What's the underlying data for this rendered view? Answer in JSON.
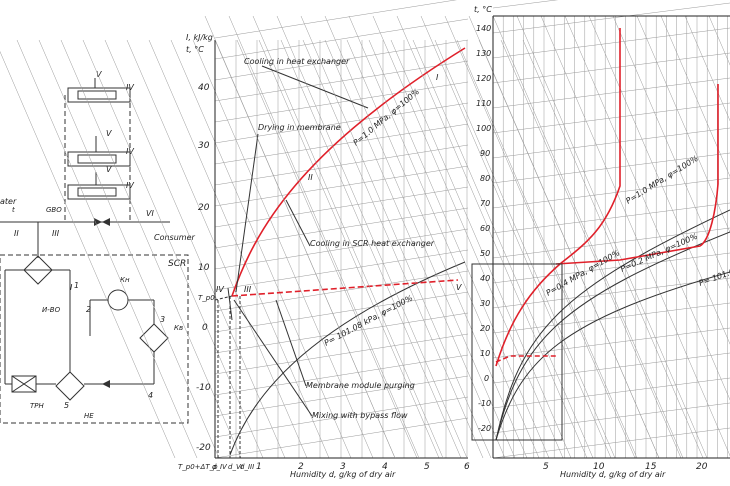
{
  "scheme": {
    "labels": {
      "water": "ater",
      "t_top": "t",
      "t_top_sub": "BO",
      "g_sub": "GBO",
      "ii": "II",
      "iii": "III",
      "v_top": "V",
      "iv_1": "IV",
      "iv_2": "IV",
      "iv_3": "IV",
      "v_1": "V",
      "v_2": "V",
      "vi": "VI",
      "consumer": "Consumer",
      "scr": "SCR",
      "i": "I",
      "ibo": "И-BO",
      "k_top": "Кн",
      "k_right": "Кв",
      "n1": "1",
      "n2": "2",
      "n3": "3",
      "n4": "4",
      "n5": "5",
      "tpn": "ТРН",
      "he": "HE"
    }
  },
  "chart1": {
    "ylabel_1": "I, kJ/kg",
    "ylabel_2": "t, °C",
    "xlabel": "Humidity d, g/kg of dry air",
    "y_ticks": [
      "40",
      "30",
      "20",
      "10",
      "0",
      "-10",
      "-20"
    ],
    "x_ticks": [
      "1",
      "2",
      "3",
      "4",
      "5",
      "6"
    ],
    "x_special": [
      "T_p0+ΔT_p",
      "d_IV",
      "d_VI",
      "d_III"
    ],
    "tp_label": "T_p0",
    "annotations": {
      "cooling_he": "Cooling in heat exchanger",
      "drying": "Drying in membrane",
      "cooling_scr": "Cooling in SCR heat exchanger",
      "purging": "Membrane module purging",
      "mixing": "Mixing with bypass flow"
    },
    "curves": {
      "p1": "P=1.0 MPa, φ=100%",
      "p2": "P= 101.08 kPa, φ=100%"
    },
    "roman": {
      "i": "I",
      "ii": "II",
      "iii": "III",
      "iv": "IV",
      "v": "V"
    }
  },
  "chart2": {
    "ylabel": "t, °C",
    "y_ticks": [
      "140",
      "130",
      "120",
      "110",
      "100",
      "90",
      "80",
      "70",
      "60",
      "50",
      "40",
      "30",
      "20",
      "10",
      "0",
      "-10",
      "-20"
    ],
    "x_ticks": [
      "5",
      "10",
      "15",
      "20"
    ],
    "xlabel": "Humidity d, g/kg of dry air",
    "curves": {
      "p1": "P=1.0 MPa, φ=100%",
      "p02": "P=0.2 MPa, φ=100%",
      "p04": "P=0.4 MPa, φ=100%",
      "p101": "P= 101.08"
    }
  },
  "colors": {
    "process": "#e0202a",
    "axis": "#222222",
    "grid": "#9a9a9a"
  }
}
